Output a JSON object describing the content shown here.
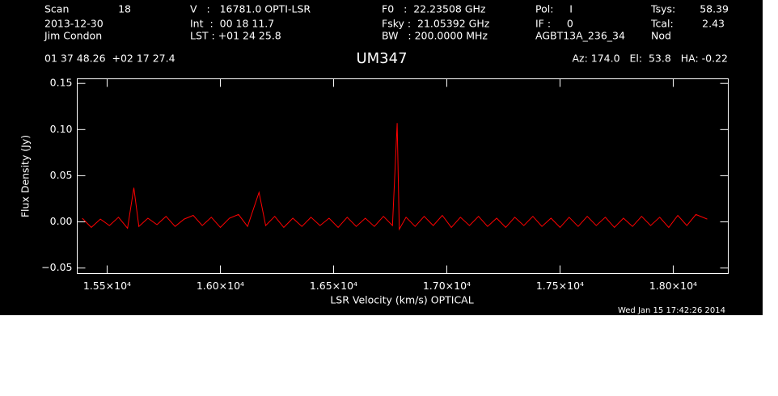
{
  "chart_data": {
    "type": "line",
    "title": "UM347",
    "header": [
      "Scan",
      "18",
      "2013-12-30",
      "Jim Condon",
      "V   :   16781.0 OPTI-LSR",
      "Int  :  00 18 11.7",
      "LST : +01 24 25.8",
      "F0   :  22.23508 GHz",
      "Fsky :  21.05392 GHz",
      "BW   : 200.0000 MHz",
      "Pol:     I",
      "IF :     0",
      "AGBT13A_236_34",
      "Tsys:",
      "58.39",
      "Tcal:",
      "2.43",
      "Nod",
      "01 37 48.26  +02 17 27.4",
      "Az: 174.0   El:  53.8   HA: -0.22"
    ],
    "timestamp": "Wed Jan 15 17:42:26 2014",
    "xlabel": "LSR Velocity (km/s) OPTICAL",
    "ylabel": "Flux Density (Jy)",
    "xlim": [
      15368,
      18243
    ],
    "ylim": [
      -0.056,
      0.155
    ],
    "xticks": [
      {
        "value": 15500,
        "label": "1.55×10⁴"
      },
      {
        "value": 16000,
        "label": "1.60×10⁴"
      },
      {
        "value": 16500,
        "label": "1.65×10⁴"
      },
      {
        "value": 17000,
        "label": "1.70×10⁴"
      },
      {
        "value": 17500,
        "label": "1.75×10⁴"
      },
      {
        "value": 18000,
        "label": "1.80×10⁴"
      }
    ],
    "yticks": [
      {
        "value": -0.05,
        "label": "−0.05"
      },
      {
        "value": 0,
        "label": "0.00"
      },
      0.05,
      {
        "value": 0.1,
        "label": "0.10"
      },
      0.15
    ],
    "x": [
      15390,
      15430,
      15470,
      15510,
      15550,
      15590,
      15618,
      15640,
      15680,
      15720,
      15760,
      15800,
      15840,
      15880,
      15920,
      15960,
      16000,
      16040,
      16080,
      16120,
      16171,
      16200,
      16240,
      16280,
      16320,
      16360,
      16400,
      16440,
      16480,
      16520,
      16560,
      16600,
      16640,
      16680,
      16720,
      16760,
      16781,
      16790,
      16820,
      16860,
      16900,
      16940,
      16980,
      17020,
      17060,
      17100,
      17140,
      17180,
      17220,
      17260,
      17300,
      17340,
      17380,
      17420,
      17460,
      17500,
      17540,
      17580,
      17620,
      17660,
      17700,
      17740,
      17780,
      17820,
      17860,
      17900,
      17940,
      17980,
      18020,
      18060,
      18100,
      18150
    ],
    "series": [
      {
        "color": "#ff0000",
        "values": [
          0.004,
          -0.006,
          0.003,
          -0.004,
          0.005,
          -0.007,
          0.037,
          -0.005,
          0.004,
          -0.003,
          0.006,
          -0.005,
          0.003,
          0.007,
          -0.004,
          0.005,
          -0.006,
          0.004,
          0.008,
          -0.005,
          0.032,
          -0.004,
          0.006,
          -0.006,
          0.004,
          -0.005,
          0.005,
          -0.004,
          0.004,
          -0.006,
          0.005,
          -0.005,
          0.004,
          -0.005,
          0.006,
          -0.004,
          0.107,
          -0.008,
          0.005,
          -0.005,
          0.006,
          -0.004,
          0.007,
          -0.006,
          0.005,
          -0.004,
          0.006,
          -0.005,
          0.004,
          -0.006,
          0.005,
          -0.004,
          0.006,
          -0.005,
          0.004,
          -0.006,
          0.005,
          -0.005,
          0.006,
          -0.004,
          0.005,
          -0.006,
          0.004,
          -0.005,
          0.006,
          -0.004,
          0.005,
          -0.006,
          0.007,
          -0.004,
          0.008,
          0.003
        ]
      }
    ]
  }
}
